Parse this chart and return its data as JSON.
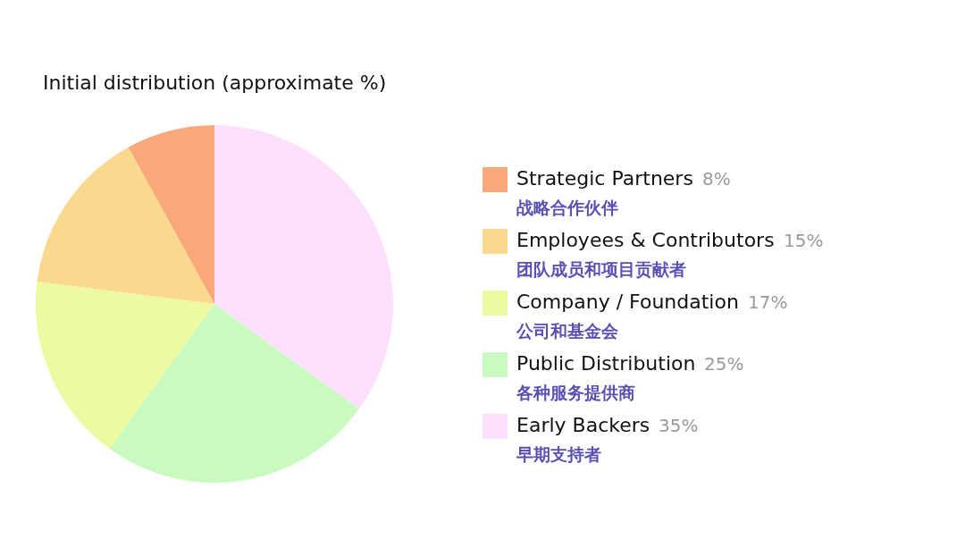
{
  "chart_data": {
    "type": "pie",
    "title": "Initial distribution (approximate %)",
    "categories": [
      "Early Backers\n早期支持者",
      "Public Distribution\n各种服务提供商",
      "Company / Foundation\n公司和基金会",
      "Employees & Contributors\n团队成员和项目贡献者",
      "Strategic Partners\n战略合作伙伴"
    ],
    "values": [
      35,
      25,
      17,
      15,
      8
    ],
    "value_labels": [
      "35%",
      "25%",
      "17%",
      "15%",
      "8%"
    ],
    "colors": [
      "#fde0fb",
      "#c9fbc0",
      "#eefaa2",
      "#fad98f",
      "#f9a87a"
    ],
    "legend": "right"
  }
}
